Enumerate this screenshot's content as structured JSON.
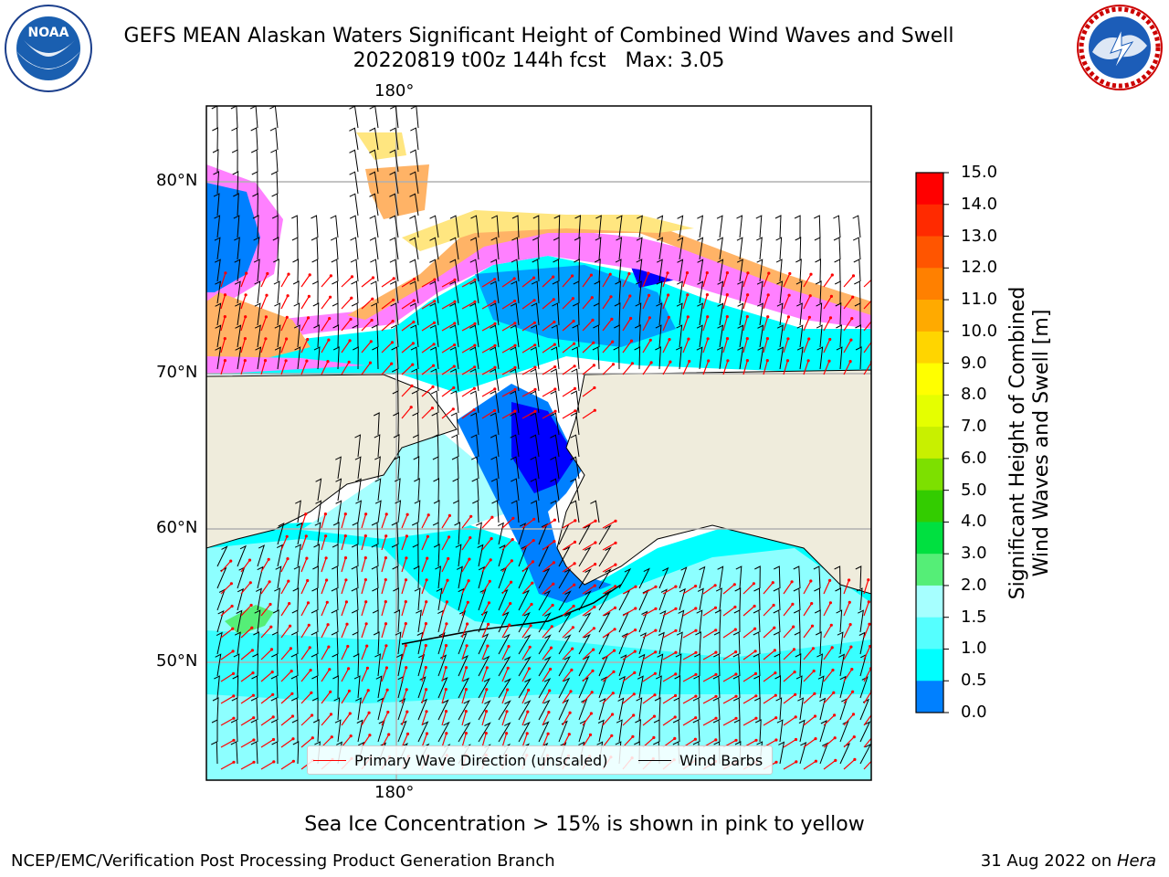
{
  "title": {
    "line1": "GEFS MEAN Alaskan Waters Significant Height of Combined Wind Waves and Swell",
    "line2": "20220819 t00z 144h fcst   Max: 3.05"
  },
  "logos": {
    "left": {
      "name": "noaa-logo",
      "text": "NOAA",
      "ring_text": "NATIONAL OCEANIC AND ATMOSPHERIC ADMINISTRATION · U.S. DEPARTMENT OF COMMERCE"
    },
    "right": {
      "name": "nws-logo",
      "ring_text": "NATIONAL WEATHER SERVICE"
    }
  },
  "map": {
    "lon_labels": {
      "top": "180°",
      "bottom": "180°"
    },
    "lat_labels": [
      "80°N",
      "70°N",
      "60°N",
      "50°N"
    ],
    "colors": {
      "land": "#efecdc",
      "ocean_low": "#00ffff",
      "ocean_mid": "#a6ffff",
      "ocean_calm": "#0000ff",
      "ocean_blue": "#0080ff",
      "ice_pink": "#ff80ff",
      "ice_orange": "#ffb366",
      "ice_yellow": "#ffe680",
      "wave_arrow": "#ff0000",
      "wind_barb": "#000000",
      "grid": "#b0b0b0"
    }
  },
  "legend": {
    "wave_label": "Primary Wave Direction (unscaled)",
    "wind_label": "Wind Barbs"
  },
  "colorbar": {
    "label_line1": "Significant Height of Combined",
    "label_line2": "Wind Waves and Swell [m]",
    "ticks": [
      "15.0",
      "14.0",
      "13.0",
      "12.0",
      "11.0",
      "10.0",
      "9.0",
      "8.0",
      "7.0",
      "6.0",
      "5.0",
      "4.0",
      "3.0",
      "2.0",
      "1.5",
      "1.0",
      "0.5",
      "0.0"
    ],
    "colors": [
      "#ff0000",
      "#ff2a00",
      "#ff5500",
      "#ff8000",
      "#ffaa00",
      "#ffd500",
      "#ffff00",
      "#e5ff00",
      "#c8f000",
      "#7de000",
      "#33cc00",
      "#00e040",
      "#55ee77",
      "#a6ffff",
      "#55ffff",
      "#00ffff",
      "#0080ff",
      "#0000ff"
    ]
  },
  "footnote": "Sea Ice Concentration > 15% is shown in pink to yellow",
  "credit": "NCEP/EMC/Verification Post Processing Product Generation Branch",
  "date": {
    "text": "31 Aug 2022 on ",
    "host": "Hera"
  }
}
